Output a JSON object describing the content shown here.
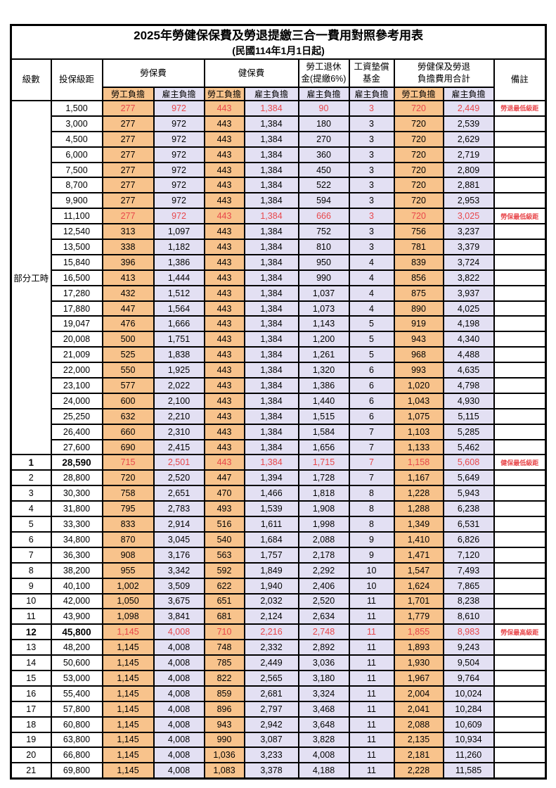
{
  "title": "2025年勞健保保費及勞退提繳三合一費用對照參考用表",
  "subtitle": "(民國114年1月1日起)",
  "header": {
    "level": "級數",
    "bracket": "投保級距",
    "labor_insurance": "勞保費",
    "health_insurance": "健保費",
    "pension_line1": "勞工退休",
    "pension_line2": "金(提繳6%)",
    "wage_fund_line1": "工資墊償",
    "wage_fund_line2": "基金",
    "total_line1": "勞健保及勞退",
    "total_line2": "負擔費用合計",
    "note": "備註",
    "employee_share": "勞工負擔",
    "employer_share": "雇主負擔"
  },
  "part_time_label": "部分工時",
  "colors": {
    "employee_bg": "#F8C38C",
    "employer_bg": "#E3E0F3",
    "highlight_text": "#E8474B",
    "border": "#000000"
  },
  "notes_legend": {
    "pension_min": "勞退最低級距",
    "labor_min": "勞保最低級距",
    "health_min": "健保最低級距",
    "labor_max": "勞保最高級距"
  },
  "rows": [
    {
      "level": "",
      "bracket": "1,500",
      "values": [
        "277",
        "972",
        "443",
        "1,384",
        "90",
        "3",
        "720",
        "2,449"
      ],
      "note": "勞退最低級距",
      "red": true,
      "bold": false
    },
    {
      "level": "",
      "bracket": "3,000",
      "values": [
        "277",
        "972",
        "443",
        "1,384",
        "180",
        "3",
        "720",
        "2,539"
      ],
      "note": "",
      "red": false,
      "bold": false
    },
    {
      "level": "",
      "bracket": "4,500",
      "values": [
        "277",
        "972",
        "443",
        "1,384",
        "270",
        "3",
        "720",
        "2,629"
      ],
      "note": "",
      "red": false,
      "bold": false
    },
    {
      "level": "",
      "bracket": "6,000",
      "values": [
        "277",
        "972",
        "443",
        "1,384",
        "360",
        "3",
        "720",
        "2,719"
      ],
      "note": "",
      "red": false,
      "bold": false
    },
    {
      "level": "",
      "bracket": "7,500",
      "values": [
        "277",
        "972",
        "443",
        "1,384",
        "450",
        "3",
        "720",
        "2,809"
      ],
      "note": "",
      "red": false,
      "bold": false
    },
    {
      "level": "",
      "bracket": "8,700",
      "values": [
        "277",
        "972",
        "443",
        "1,384",
        "522",
        "3",
        "720",
        "2,881"
      ],
      "note": "",
      "red": false,
      "bold": false
    },
    {
      "level": "",
      "bracket": "9,900",
      "values": [
        "277",
        "972",
        "443",
        "1,384",
        "594",
        "3",
        "720",
        "2,953"
      ],
      "note": "",
      "red": false,
      "bold": false
    },
    {
      "level": "",
      "bracket": "11,100",
      "values": [
        "277",
        "972",
        "443",
        "1,384",
        "666",
        "3",
        "720",
        "3,025"
      ],
      "note": "勞保最低級距",
      "red": true,
      "bold": false
    },
    {
      "level": "",
      "bracket": "12,540",
      "values": [
        "313",
        "1,097",
        "443",
        "1,384",
        "752",
        "3",
        "756",
        "3,237"
      ],
      "note": "",
      "red": false,
      "bold": false
    },
    {
      "level": "",
      "bracket": "13,500",
      "values": [
        "338",
        "1,182",
        "443",
        "1,384",
        "810",
        "3",
        "781",
        "3,379"
      ],
      "note": "",
      "red": false,
      "bold": false
    },
    {
      "level": "",
      "bracket": "15,840",
      "values": [
        "396",
        "1,386",
        "443",
        "1,384",
        "950",
        "4",
        "839",
        "3,724"
      ],
      "note": "",
      "red": false,
      "bold": false
    },
    {
      "level": "",
      "bracket": "16,500",
      "values": [
        "413",
        "1,444",
        "443",
        "1,384",
        "990",
        "4",
        "856",
        "3,822"
      ],
      "note": "",
      "red": false,
      "bold": false
    },
    {
      "level": "",
      "bracket": "17,280",
      "values": [
        "432",
        "1,512",
        "443",
        "1,384",
        "1,037",
        "4",
        "875",
        "3,937"
      ],
      "note": "",
      "red": false,
      "bold": false
    },
    {
      "level": "",
      "bracket": "17,880",
      "values": [
        "447",
        "1,564",
        "443",
        "1,384",
        "1,073",
        "4",
        "890",
        "4,025"
      ],
      "note": "",
      "red": false,
      "bold": false
    },
    {
      "level": "",
      "bracket": "19,047",
      "values": [
        "476",
        "1,666",
        "443",
        "1,384",
        "1,143",
        "5",
        "919",
        "4,198"
      ],
      "note": "",
      "red": false,
      "bold": false
    },
    {
      "level": "",
      "bracket": "20,008",
      "values": [
        "500",
        "1,751",
        "443",
        "1,384",
        "1,200",
        "5",
        "943",
        "4,340"
      ],
      "note": "",
      "red": false,
      "bold": false
    },
    {
      "level": "",
      "bracket": "21,009",
      "values": [
        "525",
        "1,838",
        "443",
        "1,384",
        "1,261",
        "5",
        "968",
        "4,488"
      ],
      "note": "",
      "red": false,
      "bold": false
    },
    {
      "level": "",
      "bracket": "22,000",
      "values": [
        "550",
        "1,925",
        "443",
        "1,384",
        "1,320",
        "6",
        "993",
        "4,635"
      ],
      "note": "",
      "red": false,
      "bold": false
    },
    {
      "level": "",
      "bracket": "23,100",
      "values": [
        "577",
        "2,022",
        "443",
        "1,384",
        "1,386",
        "6",
        "1,020",
        "4,798"
      ],
      "note": "",
      "red": false,
      "bold": false
    },
    {
      "level": "",
      "bracket": "24,000",
      "values": [
        "600",
        "2,100",
        "443",
        "1,384",
        "1,440",
        "6",
        "1,043",
        "4,930"
      ],
      "note": "",
      "red": false,
      "bold": false
    },
    {
      "level": "",
      "bracket": "25,250",
      "values": [
        "632",
        "2,210",
        "443",
        "1,384",
        "1,515",
        "6",
        "1,075",
        "5,115"
      ],
      "note": "",
      "red": false,
      "bold": false
    },
    {
      "level": "",
      "bracket": "26,400",
      "values": [
        "660",
        "2,310",
        "443",
        "1,384",
        "1,584",
        "7",
        "1,103",
        "5,285"
      ],
      "note": "",
      "red": false,
      "bold": false
    },
    {
      "level": "",
      "bracket": "27,600",
      "values": [
        "690",
        "2,415",
        "443",
        "1,384",
        "1,656",
        "7",
        "1,133",
        "5,462"
      ],
      "note": "",
      "red": false,
      "bold": false
    },
    {
      "level": "1",
      "bracket": "28,590",
      "values": [
        "715",
        "2,501",
        "443",
        "1,384",
        "1,715",
        "7",
        "1,158",
        "5,608"
      ],
      "note": "健保最低級距",
      "red": true,
      "bold": true
    },
    {
      "level": "2",
      "bracket": "28,800",
      "values": [
        "720",
        "2,520",
        "447",
        "1,394",
        "1,728",
        "7",
        "1,167",
        "5,649"
      ],
      "note": "",
      "red": false,
      "bold": false
    },
    {
      "level": "3",
      "bracket": "30,300",
      "values": [
        "758",
        "2,651",
        "470",
        "1,466",
        "1,818",
        "8",
        "1,228",
        "5,943"
      ],
      "note": "",
      "red": false,
      "bold": false
    },
    {
      "level": "4",
      "bracket": "31,800",
      "values": [
        "795",
        "2,783",
        "493",
        "1,539",
        "1,908",
        "8",
        "1,288",
        "6,238"
      ],
      "note": "",
      "red": false,
      "bold": false
    },
    {
      "level": "5",
      "bracket": "33,300",
      "values": [
        "833",
        "2,914",
        "516",
        "1,611",
        "1,998",
        "8",
        "1,349",
        "6,531"
      ],
      "note": "",
      "red": false,
      "bold": false
    },
    {
      "level": "6",
      "bracket": "34,800",
      "values": [
        "870",
        "3,045",
        "540",
        "1,684",
        "2,088",
        "9",
        "1,410",
        "6,826"
      ],
      "note": "",
      "red": false,
      "bold": false
    },
    {
      "level": "7",
      "bracket": "36,300",
      "values": [
        "908",
        "3,176",
        "563",
        "1,757",
        "2,178",
        "9",
        "1,471",
        "7,120"
      ],
      "note": "",
      "red": false,
      "bold": false
    },
    {
      "level": "8",
      "bracket": "38,200",
      "values": [
        "955",
        "3,342",
        "592",
        "1,849",
        "2,292",
        "10",
        "1,547",
        "7,493"
      ],
      "note": "",
      "red": false,
      "bold": false
    },
    {
      "level": "9",
      "bracket": "40,100",
      "values": [
        "1,002",
        "3,509",
        "622",
        "1,940",
        "2,406",
        "10",
        "1,624",
        "7,865"
      ],
      "note": "",
      "red": false,
      "bold": false
    },
    {
      "level": "10",
      "bracket": "42,000",
      "values": [
        "1,050",
        "3,675",
        "651",
        "2,032",
        "2,520",
        "11",
        "1,701",
        "8,238"
      ],
      "note": "",
      "red": false,
      "bold": false
    },
    {
      "level": "11",
      "bracket": "43,900",
      "values": [
        "1,098",
        "3,841",
        "681",
        "2,124",
        "2,634",
        "11",
        "1,779",
        "8,610"
      ],
      "note": "",
      "red": false,
      "bold": false
    },
    {
      "level": "12",
      "bracket": "45,800",
      "values": [
        "1,145",
        "4,008",
        "710",
        "2,216",
        "2,748",
        "11",
        "1,855",
        "8,983"
      ],
      "note": "勞保最高級距",
      "red": true,
      "bold": true
    },
    {
      "level": "13",
      "bracket": "48,200",
      "values": [
        "1,145",
        "4,008",
        "748",
        "2,332",
        "2,892",
        "11",
        "1,893",
        "9,243"
      ],
      "note": "",
      "red": false,
      "bold": false
    },
    {
      "level": "14",
      "bracket": "50,600",
      "values": [
        "1,145",
        "4,008",
        "785",
        "2,449",
        "3,036",
        "11",
        "1,930",
        "9,504"
      ],
      "note": "",
      "red": false,
      "bold": false
    },
    {
      "level": "15",
      "bracket": "53,000",
      "values": [
        "1,145",
        "4,008",
        "822",
        "2,565",
        "3,180",
        "11",
        "1,967",
        "9,764"
      ],
      "note": "",
      "red": false,
      "bold": false
    },
    {
      "level": "16",
      "bracket": "55,400",
      "values": [
        "1,145",
        "4,008",
        "859",
        "2,681",
        "3,324",
        "11",
        "2,004",
        "10,024"
      ],
      "note": "",
      "red": false,
      "bold": false
    },
    {
      "level": "17",
      "bracket": "57,800",
      "values": [
        "1,145",
        "4,008",
        "896",
        "2,797",
        "3,468",
        "11",
        "2,041",
        "10,284"
      ],
      "note": "",
      "red": false,
      "bold": false
    },
    {
      "level": "18",
      "bracket": "60,800",
      "values": [
        "1,145",
        "4,008",
        "943",
        "2,942",
        "3,648",
        "11",
        "2,088",
        "10,609"
      ],
      "note": "",
      "red": false,
      "bold": false
    },
    {
      "level": "19",
      "bracket": "63,800",
      "values": [
        "1,145",
        "4,008",
        "990",
        "3,087",
        "3,828",
        "11",
        "2,135",
        "10,934"
      ],
      "note": "",
      "red": false,
      "bold": false
    },
    {
      "level": "20",
      "bracket": "66,800",
      "values": [
        "1,145",
        "4,008",
        "1,036",
        "3,233",
        "4,008",
        "11",
        "2,181",
        "11,260"
      ],
      "note": "",
      "red": false,
      "bold": false
    },
    {
      "level": "21",
      "bracket": "69,800",
      "values": [
        "1,145",
        "4,008",
        "1,083",
        "3,378",
        "4,188",
        "11",
        "2,228",
        "11,585"
      ],
      "note": "",
      "red": false,
      "bold": false
    }
  ]
}
